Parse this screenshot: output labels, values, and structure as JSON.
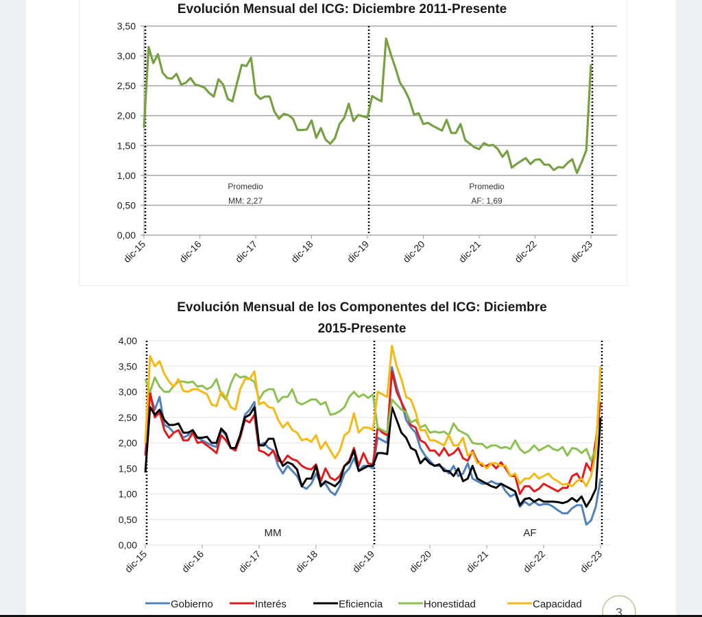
{
  "page_number": "3",
  "chart_data": [
    {
      "type": "line",
      "title": "Evolución Mensual del ICG: Diciembre 2011-Presente",
      "xlabel": "",
      "ylabel": "",
      "ylim": [
        0,
        3.5
      ],
      "yticks": [
        "0,00",
        "0,50",
        "1,00",
        "1,50",
        "2,00",
        "2,50",
        "3,00",
        "3,50"
      ],
      "ytick_values": [
        0,
        0.5,
        1,
        1.5,
        2,
        2.5,
        3,
        3.5
      ],
      "x_tick_labels": [
        "dic-15",
        "dic-16",
        "dic-17",
        "dic-18",
        "dic-19",
        "dic-20",
        "dic-21",
        "dic-22",
        "dic-23"
      ],
      "x_start": "dic-15",
      "x_frequency": "monthly",
      "grid": true,
      "color": "#77a043",
      "period_markers": [
        "dic-15",
        "dic-19",
        "dic-23"
      ],
      "annotations": [
        {
          "line1": "Promedio",
          "line2": "MM: 2,27"
        },
        {
          "line1": "Promedio",
          "line2": "AF: 1,69"
        }
      ],
      "series": [
        {
          "name": "ICG",
          "values": [
            1.8,
            3.15,
            2.88,
            3.03,
            2.72,
            2.63,
            2.62,
            2.7,
            2.52,
            2.55,
            2.63,
            2.52,
            2.5,
            2.47,
            2.38,
            2.32,
            2.61,
            2.52,
            2.28,
            2.24,
            2.55,
            2.85,
            2.83,
            2.97,
            2.36,
            2.28,
            2.32,
            2.32,
            2.07,
            1.95,
            2.03,
            2.01,
            1.95,
            1.76,
            1.76,
            1.77,
            1.92,
            1.63,
            1.79,
            1.6,
            1.53,
            1.62,
            1.86,
            1.96,
            2.2,
            1.91,
            2.01,
            1.99,
            1.97,
            2.33,
            2.28,
            2.24,
            3.29,
            3.03,
            2.8,
            2.55,
            2.43,
            2.27,
            2.02,
            2.04,
            1.86,
            1.88,
            1.83,
            1.79,
            1.75,
            1.93,
            1.71,
            1.71,
            1.86,
            1.59,
            1.53,
            1.47,
            1.44,
            1.54,
            1.5,
            1.51,
            1.44,
            1.31,
            1.41,
            1.13,
            1.19,
            1.24,
            1.29,
            1.19,
            1.26,
            1.27,
            1.18,
            1.18,
            1.09,
            1.14,
            1.13,
            1.21,
            1.27,
            1.04,
            1.22,
            1.42,
            2.86
          ]
        }
      ]
    },
    {
      "type": "line",
      "title": "Evolución Mensual de los Componentes del ICG: Diciembre 2015-Presente",
      "title_line1": "Evolución Mensual de los Componentes del ICG: Diciembre",
      "title_line2": "2015-Presente",
      "xlabel": "",
      "ylabel": "",
      "ylim": [
        0,
        4
      ],
      "yticks": [
        "0,00",
        "0,50",
        "1,00",
        "1,50",
        "2,00",
        "2,50",
        "3,00",
        "3,50",
        "4,00"
      ],
      "ytick_values": [
        0,
        0.5,
        1,
        1.5,
        2,
        2.5,
        3,
        3.5,
        4
      ],
      "x_tick_labels": [
        "dic-15",
        "dic-16",
        "dic-17",
        "dic-18",
        "dic-19",
        "dic-20",
        "dic-21",
        "dic-22",
        "dic-23"
      ],
      "x_start": "dic-15",
      "x_frequency": "monthly",
      "grid": true,
      "legend_position": "bottom",
      "period_markers": [
        "dic-15",
        "dic-19",
        "dic-23"
      ],
      "annotations": [
        "MM",
        "AF"
      ],
      "series": [
        {
          "name": "Gobierno",
          "color": "#4f81bd",
          "values": [
            1.75,
            2.95,
            2.65,
            2.9,
            2.35,
            2.3,
            2.2,
            2.25,
            2.1,
            2.15,
            2.25,
            2.1,
            2.05,
            2.0,
            1.95,
            1.92,
            2.25,
            2.15,
            1.9,
            1.88,
            2.15,
            2.55,
            2.65,
            2.8,
            1.95,
            2.0,
            1.9,
            1.85,
            1.55,
            1.4,
            1.55,
            1.45,
            1.35,
            1.15,
            1.1,
            1.2,
            1.4,
            1.2,
            1.2,
            1.05,
            0.98,
            1.15,
            1.4,
            1.5,
            1.7,
            1.45,
            1.55,
            1.55,
            1.5,
            2.1,
            2.05,
            2.0,
            3.48,
            3.1,
            2.8,
            2.45,
            2.3,
            2.2,
            1.9,
            1.75,
            1.65,
            1.55,
            1.55,
            1.5,
            1.4,
            1.55,
            1.35,
            1.4,
            1.6,
            1.3,
            1.25,
            1.2,
            1.2,
            1.25,
            1.2,
            1.2,
            1.05,
            0.95,
            1.0,
            0.75,
            0.85,
            0.78,
            0.85,
            0.78,
            0.8,
            0.8,
            0.75,
            0.68,
            0.62,
            0.62,
            0.72,
            0.78,
            0.78,
            0.4,
            0.48,
            0.75,
            1.3
          ]
        },
        {
          "name": "Interés",
          "color": "#e31a1c",
          "values": [
            1.75,
            3.0,
            2.5,
            2.6,
            2.25,
            2.1,
            2.2,
            2.25,
            2.05,
            2.05,
            2.2,
            2.0,
            2.02,
            1.95,
            1.88,
            1.8,
            2.15,
            2.05,
            1.9,
            1.85,
            2.1,
            2.45,
            2.4,
            2.55,
            1.85,
            1.82,
            1.75,
            1.85,
            1.65,
            1.62,
            1.75,
            1.68,
            1.65,
            1.55,
            1.5,
            1.48,
            1.58,
            1.25,
            1.5,
            1.32,
            1.27,
            1.35,
            1.55,
            1.65,
            1.9,
            1.55,
            1.8,
            1.6,
            1.58,
            2.3,
            2.2,
            2.15,
            3.4,
            3.0,
            2.8,
            2.6,
            2.35,
            2.3,
            2.05,
            2.0,
            1.85,
            1.85,
            1.75,
            1.9,
            1.75,
            1.8,
            1.9,
            1.7,
            1.65,
            1.85,
            1.65,
            1.55,
            1.55,
            1.6,
            1.5,
            1.62,
            1.5,
            1.35,
            1.35,
            1.0,
            1.15,
            1.15,
            1.05,
            1.1,
            1.2,
            1.15,
            1.1,
            1.05,
            1.12,
            1.12,
            1.35,
            1.4,
            1.25,
            1.6,
            1.45,
            2.05,
            2.8
          ]
        },
        {
          "name": "Eficiencia",
          "color": "#000000",
          "values": [
            1.42,
            2.7,
            2.55,
            2.65,
            2.45,
            2.35,
            2.35,
            2.38,
            2.2,
            2.2,
            2.25,
            2.1,
            2.1,
            2.12,
            2.0,
            2.0,
            2.28,
            2.18,
            1.9,
            1.9,
            2.15,
            2.5,
            2.55,
            2.7,
            1.95,
            1.95,
            2.08,
            2.08,
            1.75,
            1.55,
            1.62,
            1.58,
            1.48,
            1.15,
            1.3,
            1.3,
            1.55,
            1.15,
            1.25,
            1.2,
            1.15,
            1.25,
            1.55,
            1.62,
            1.85,
            1.45,
            1.5,
            1.55,
            1.55,
            1.8,
            1.8,
            1.78,
            2.7,
            2.45,
            2.2,
            2.1,
            1.9,
            1.85,
            1.6,
            1.7,
            1.6,
            1.55,
            1.58,
            1.45,
            1.45,
            1.35,
            1.5,
            1.25,
            1.3,
            1.55,
            1.3,
            1.25,
            1.2,
            1.15,
            1.12,
            1.2,
            1.15,
            1.1,
            1.05,
            0.78,
            0.9,
            0.92,
            0.85,
            0.9,
            0.85,
            0.85,
            0.85,
            0.84,
            0.82,
            0.85,
            0.92,
            0.85,
            0.95,
            0.75,
            0.9,
            1.1,
            2.5
          ]
        },
        {
          "name": "Honestidad",
          "color": "#8cc152",
          "values": [
            3.25,
            3.0,
            3.28,
            3.1,
            3.0,
            3.0,
            3.12,
            3.2,
            3.2,
            3.18,
            3.2,
            3.1,
            3.12,
            3.05,
            3.1,
            3.25,
            2.95,
            2.85,
            3.15,
            3.35,
            3.28,
            3.3,
            3.25,
            3.2,
            2.85,
            3.0,
            3.05,
            3.05,
            2.8,
            2.9,
            2.9,
            3.05,
            2.8,
            2.75,
            2.8,
            2.85,
            2.85,
            2.75,
            2.8,
            2.55,
            2.57,
            2.62,
            2.7,
            2.9,
            3.0,
            2.9,
            2.95,
            2.88,
            2.95,
            2.3,
            2.25,
            2.2,
            2.85,
            2.75,
            2.65,
            2.6,
            2.4,
            2.45,
            2.3,
            2.35,
            2.2,
            2.22,
            2.2,
            2.22,
            2.15,
            2.38,
            2.25,
            2.2,
            2.15,
            2.0,
            1.98,
            1.98,
            1.9,
            1.95,
            1.95,
            1.9,
            1.92,
            1.88,
            2.05,
            1.88,
            1.8,
            1.85,
            1.95,
            1.85,
            1.9,
            1.95,
            1.88,
            1.85,
            1.92,
            1.75,
            1.9,
            1.88,
            1.8,
            1.88,
            1.65,
            1.9,
            3.3
          ]
        },
        {
          "name": "Capacidad",
          "color": "#f5b914",
          "values": [
            2.0,
            3.7,
            3.5,
            3.6,
            3.35,
            3.2,
            3.1,
            3.25,
            3.02,
            3.0,
            3.05,
            3.05,
            3.0,
            2.95,
            2.75,
            2.72,
            3.0,
            2.9,
            2.7,
            2.65,
            3.05,
            3.25,
            3.25,
            3.4,
            2.75,
            2.8,
            2.7,
            2.68,
            2.45,
            2.3,
            2.4,
            2.25,
            2.2,
            2.05,
            2.08,
            2.02,
            2.15,
            1.88,
            2.02,
            1.85,
            1.7,
            1.85,
            2.15,
            2.22,
            2.58,
            2.2,
            2.3,
            2.3,
            2.25,
            3.0,
            2.95,
            2.9,
            3.9,
            3.5,
            3.25,
            2.9,
            2.85,
            2.6,
            2.25,
            2.25,
            2.05,
            2.05,
            2.0,
            1.95,
            2.15,
            1.95,
            1.95,
            2.1,
            1.75,
            1.82,
            1.6,
            1.6,
            1.5,
            1.6,
            1.6,
            1.55,
            1.55,
            1.35,
            1.4,
            1.2,
            1.3,
            1.3,
            1.4,
            1.3,
            1.35,
            1.4,
            1.3,
            1.25,
            1.18,
            1.2,
            1.15,
            1.25,
            1.3,
            1.15,
            1.35,
            1.8,
            3.5
          ]
        }
      ]
    }
  ]
}
